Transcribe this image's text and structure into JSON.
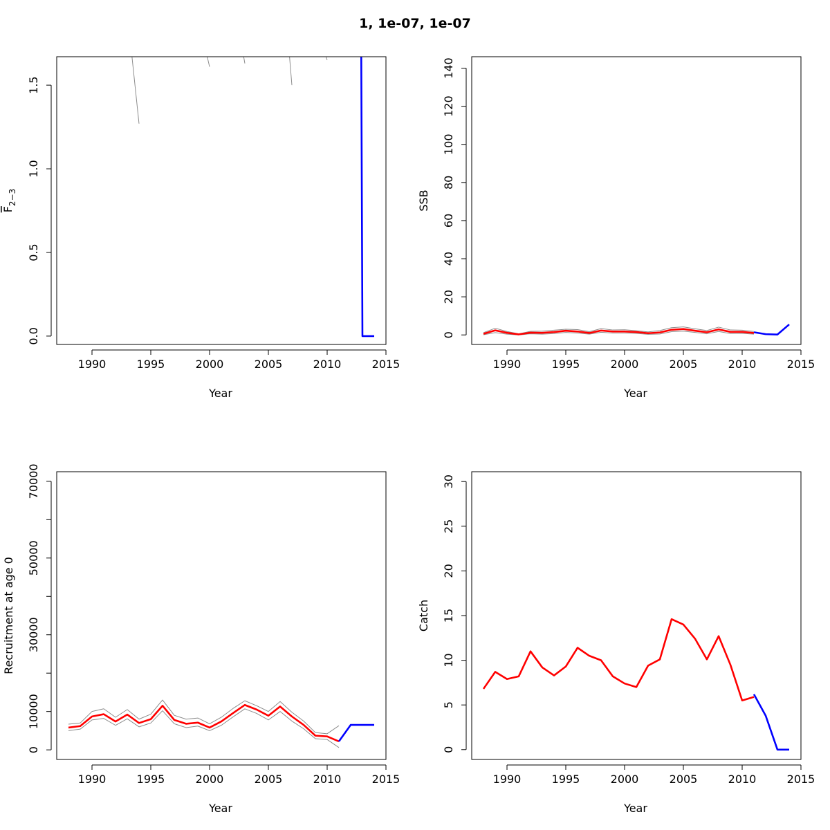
{
  "title": "1, 1e-07, 1e-07",
  "colors": {
    "ci": "#8c8c8c",
    "estimate": "#ff0000",
    "forecast": "#0000ff",
    "axis": "#000000"
  },
  "chart_data": [
    {
      "type": "line",
      "panel": "top-left",
      "ylabel_main": "F",
      "ylabel_sub": "2−3",
      "xlabel": "Year",
      "xlim": [
        1987,
        2015
      ],
      "ylim": [
        -0.05,
        1.67
      ],
      "xticks": [
        1990,
        1995,
        2000,
        2005,
        2010,
        2015
      ],
      "yticks": [
        0.0,
        0.5,
        1.0,
        1.5
      ],
      "ytick_labels": [
        "0.0",
        "0.5",
        "1.0",
        "1.5"
      ],
      "series": [
        {
          "role": "ci",
          "x": [
            1988,
            1988.2,
            1993.4,
            1994,
            1995,
            1999.8,
            2000,
            2000.2,
            2002.9,
            2003,
            2003.1,
            2006.8,
            2007,
            2007.3,
            2009.9,
            2010,
            2010.1
          ],
          "y": [
            1.6,
            1.67,
            1.67,
            1.27,
            1.67,
            1.67,
            1.61,
            1.67,
            1.67,
            1.63,
            1.67,
            1.67,
            1.5,
            1.67,
            1.67,
            1.65,
            1.67
          ],
          "breaks": [
            1,
            4,
            7,
            10,
            13,
            16
          ]
        },
        {
          "role": "forecast",
          "x": [
            2012.9,
            2013,
            2014
          ],
          "y": [
            1.67,
            0.0,
            0.0
          ]
        }
      ]
    },
    {
      "type": "line",
      "panel": "top-right",
      "ylabel": "SSB",
      "xlabel": "Year",
      "xlim": [
        1987,
        2015
      ],
      "ylim": [
        -5,
        146
      ],
      "xticks": [
        1990,
        1995,
        2000,
        2005,
        2010,
        2015
      ],
      "yticks": [
        0,
        20,
        40,
        60,
        80,
        100,
        120,
        140
      ],
      "series": [
        {
          "role": "ci",
          "x": [
            1988,
            1989,
            1990,
            1991,
            1992,
            1993,
            1994,
            1995,
            1996,
            1997,
            1998,
            1999,
            2000,
            2001,
            2002,
            2003,
            2004,
            2005,
            2006,
            2007,
            2008,
            2009,
            2010,
            2011
          ],
          "y": [
            1.2,
            3.5,
            1.8,
            0.6,
            1.9,
            2.0,
            2.5,
            3.0,
            2.8,
            1.7,
            3.3,
            2.6,
            2.7,
            2.2,
            1.6,
            2.3,
            3.8,
            4.2,
            3.2,
            2.3,
            4.1,
            2.6,
            2.5,
            1.8
          ]
        },
        {
          "role": "ci",
          "x": [
            1988,
            1989,
            1990,
            1991,
            1992,
            1993,
            1994,
            1995,
            1996,
            1997,
            1998,
            1999,
            2000,
            2001,
            2002,
            2003,
            2004,
            2005,
            2006,
            2007,
            2008,
            2009,
            2010,
            2011
          ],
          "y": [
            0.1,
            1.2,
            0.4,
            0.0,
            0.6,
            0.4,
            0.7,
            1.3,
            1.0,
            0.4,
            1.4,
            1.0,
            1.0,
            0.8,
            0.3,
            0.5,
            1.7,
            2.0,
            1.3,
            0.6,
            1.8,
            0.7,
            0.8,
            0.4
          ]
        },
        {
          "role": "estimate",
          "x": [
            1988,
            1989,
            1990,
            1991,
            1992,
            1993,
            1994,
            1995,
            1996,
            1997,
            1998,
            1999,
            2000,
            2001,
            2002,
            2003,
            2004,
            2005,
            2006,
            2007,
            2008,
            2009,
            2010,
            2011
          ],
          "y": [
            0.6,
            2.4,
            1.1,
            0.3,
            1.2,
            1.1,
            1.5,
            2.2,
            1.8,
            1.0,
            2.3,
            1.8,
            1.8,
            1.5,
            0.9,
            1.3,
            2.7,
            3.1,
            2.2,
            1.4,
            2.9,
            1.6,
            1.6,
            1.0
          ]
        },
        {
          "role": "forecast",
          "x": [
            2011,
            2012,
            2013,
            2014
          ],
          "y": [
            1.4,
            0.4,
            0.2,
            5.5
          ]
        }
      ]
    },
    {
      "type": "line",
      "panel": "bottom-left",
      "ylabel": "Recruitment at age 0",
      "xlabel": "Year",
      "xlim": [
        1987,
        2015
      ],
      "ylim": [
        -2500,
        72500
      ],
      "xticks": [
        1990,
        1995,
        2000,
        2005,
        2010,
        2015
      ],
      "yticks": [
        0,
        10000,
        20000,
        30000,
        40000,
        50000,
        60000,
        70000
      ],
      "ytick_labels": [
        "0",
        "10000",
        "",
        "30000",
        "",
        "50000",
        "",
        "70000"
      ],
      "series": [
        {
          "role": "ci",
          "x": [
            1988,
            1989,
            1990,
            1991,
            1992,
            1993,
            1994,
            1995,
            1996,
            1997,
            1998,
            1999,
            2000,
            2001,
            2002,
            2003,
            2004,
            2005,
            2006,
            2007,
            2008,
            2009,
            2010,
            2011
          ],
          "y": [
            6700,
            7000,
            10000,
            10700,
            8500,
            10500,
            8000,
            9300,
            13000,
            9000,
            8000,
            8300,
            6800,
            8500,
            10800,
            12800,
            11500,
            10000,
            12600,
            9800,
            7500,
            4500,
            4200,
            6300
          ]
        },
        {
          "role": "ci",
          "x": [
            1988,
            1989,
            1990,
            1991,
            1992,
            1993,
            1994,
            1995,
            1996,
            1997,
            1998,
            1999,
            2000,
            2001,
            2002,
            2003,
            2004,
            2005,
            2006,
            2007,
            2008,
            2009,
            2010,
            2011
          ],
          "y": [
            5000,
            5400,
            7800,
            8200,
            6400,
            8100,
            6000,
            7000,
            10200,
            6800,
            5800,
            6200,
            5000,
            6400,
            8600,
            10700,
            9500,
            7800,
            10000,
            7500,
            5500,
            2900,
            2700,
            600
          ]
        },
        {
          "role": "estimate",
          "x": [
            1988,
            1989,
            1990,
            1991,
            1992,
            1993,
            1994,
            1995,
            1996,
            1997,
            1998,
            1999,
            2000,
            2001,
            2002,
            2003,
            2004,
            2005,
            2006,
            2007,
            2008,
            2009,
            2010,
            2011
          ],
          "y": [
            5800,
            6200,
            8700,
            9300,
            7400,
            9200,
            7000,
            8000,
            11500,
            7800,
            6800,
            7100,
            5800,
            7400,
            9600,
            11700,
            10500,
            8900,
            11300,
            8700,
            6500,
            3700,
            3500,
            2200
          ]
        },
        {
          "role": "forecast",
          "x": [
            2011,
            2012,
            2013,
            2014
          ],
          "y": [
            2200,
            6500,
            6500,
            6500
          ]
        }
      ]
    },
    {
      "type": "line",
      "panel": "bottom-right",
      "ylabel": "Catch",
      "xlabel": "Year",
      "xlim": [
        1987,
        2015
      ],
      "ylim": [
        -1.1,
        31.1
      ],
      "xticks": [
        1990,
        1995,
        2000,
        2005,
        2010,
        2015
      ],
      "yticks": [
        0,
        5,
        10,
        15,
        20,
        25,
        30
      ],
      "series": [
        {
          "role": "estimate",
          "x": [
            1988,
            1989,
            1990,
            1991,
            1992,
            1993,
            1994,
            1995,
            1996,
            1997,
            1998,
            1999,
            2000,
            2001,
            2002,
            2003,
            2004,
            2005,
            2006,
            2007,
            2008,
            2009,
            2010,
            2011
          ],
          "y": [
            6.8,
            8.7,
            7.9,
            8.2,
            11.0,
            9.2,
            8.3,
            9.3,
            11.4,
            10.5,
            10.0,
            8.2,
            7.4,
            7.0,
            9.4,
            10.1,
            14.6,
            14.0,
            12.4,
            10.1,
            12.7,
            9.5,
            5.5,
            5.9
          ]
        },
        {
          "role": "forecast",
          "x": [
            2011,
            2012,
            2013,
            2014
          ],
          "y": [
            6.2,
            3.8,
            0.0,
            0.0
          ]
        }
      ]
    }
  ]
}
